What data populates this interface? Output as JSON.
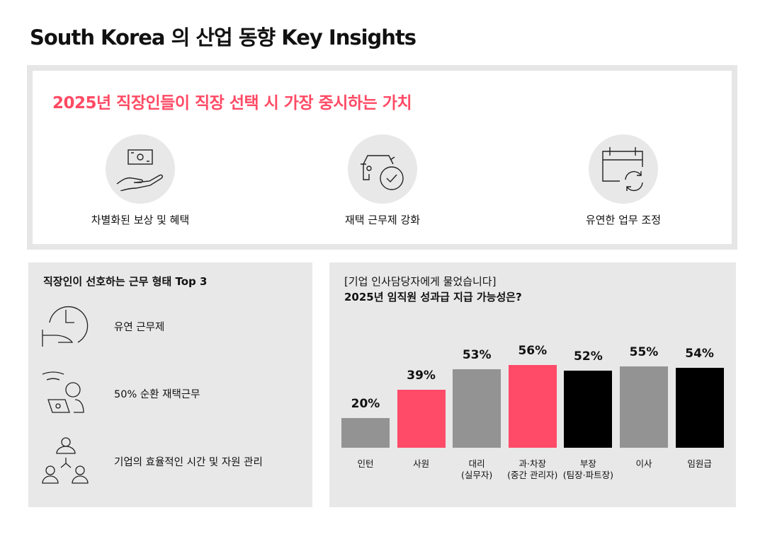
{
  "title": "South Korea 의 산업 동향 Key Insights",
  "values_section": {
    "title": "2025년 직장인들이 직장 선택 시 가장 중시하는 가치",
    "items": [
      {
        "icon": "money-hand-icon",
        "label": "차별화된 보상 및 혜택"
      },
      {
        "icon": "car-check-icon",
        "label": "재택 근무제 강화"
      },
      {
        "icon": "calendar-refresh-icon",
        "label": "유연한 업무 조정"
      }
    ]
  },
  "work_types": {
    "title": "직장인이 선호하는 근무 형태 Top 3",
    "items": [
      {
        "icon": "clock-hand-icon",
        "label": "유연 근무제"
      },
      {
        "icon": "remote-work-icon",
        "label": "50% 순환 재택근무"
      },
      {
        "icon": "team-hierarchy-icon",
        "label": "기업의 효율적인 시간 및 자원 관리"
      }
    ]
  },
  "chart_data": {
    "type": "bar",
    "title_line1": "[기업 인사담당자에게 물었습니다]",
    "title_line2": "2025년 임직원 성과급 지급 가능성은?",
    "categories": [
      [
        "인턴"
      ],
      [
        "사원"
      ],
      [
        "대리",
        "(실무자)"
      ],
      [
        "과·차장",
        "(중간 관리자)"
      ],
      [
        "부장",
        "(팀장·파트장)"
      ],
      [
        "이사"
      ],
      [
        "임원급"
      ]
    ],
    "values": [
      20,
      39,
      53,
      56,
      52,
      55,
      54
    ],
    "value_labels": [
      "20%",
      "39%",
      "53%",
      "56%",
      "52%",
      "55%",
      "54%"
    ],
    "colors": [
      "#939393",
      "#ff4b68",
      "#939393",
      "#ff4b68",
      "#000000",
      "#939393",
      "#000000"
    ],
    "ylim": [
      0,
      100
    ],
    "grid": false
  }
}
